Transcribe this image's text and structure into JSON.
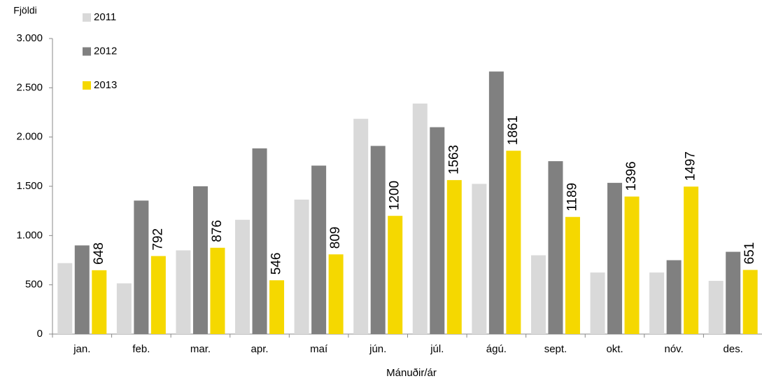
{
  "chart_data": {
    "type": "bar",
    "y_axis_title": "Fjöldi",
    "x_axis_title": "Mánuðir/ár",
    "categories": [
      "jan.",
      "feb.",
      "mar.",
      "apr.",
      "maí",
      "jún.",
      "júl.",
      "ágú.",
      "sept.",
      "okt.",
      "nóv.",
      "des."
    ],
    "series": [
      {
        "name": "2011",
        "color": "#d9d9d9",
        "values": [
          720,
          515,
          850,
          1160,
          1365,
          2185,
          2340,
          1525,
          800,
          625,
          625,
          540
        ]
      },
      {
        "name": "2012",
        "color": "#808080",
        "values": [
          900,
          1355,
          1500,
          1885,
          1710,
          1910,
          2100,
          2665,
          1755,
          1535,
          750,
          835
        ]
      },
      {
        "name": "2013",
        "color": "#f5d800",
        "values": [
          648,
          792,
          876,
          546,
          809,
          1200,
          1563,
          1861,
          1189,
          1396,
          1497,
          651
        ],
        "show_labels": true
      }
    ],
    "ylim": [
      0,
      3000
    ],
    "yticks": [
      0,
      500,
      {
        "value": 1000,
        "label": "1.000"
      },
      {
        "value": 1500,
        "label": "1.500"
      },
      {
        "value": 2000,
        "label": "2.000"
      },
      {
        "value": 2500,
        "label": "2.500"
      },
      {
        "value": 3000,
        "label": "3.000"
      }
    ],
    "grid": false
  }
}
